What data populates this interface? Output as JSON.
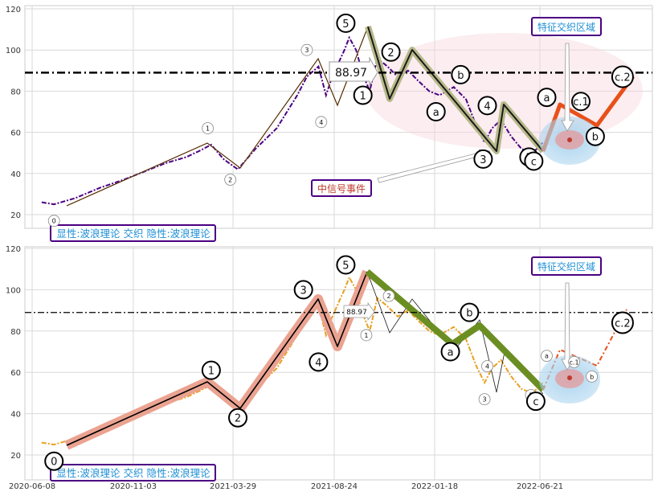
{
  "chart_data": [
    {
      "type": "line",
      "panel": "top",
      "xlabel": "",
      "ylabel": "",
      "x_ticks": [
        "2020-06-08",
        "2020-11-03",
        "2021-03-29",
        "2021-08-24",
        "2022-01-18",
        "2022-06-21"
      ],
      "y_ticks": [
        "20",
        "40",
        "60",
        "80",
        "100",
        "120"
      ],
      "ylim": [
        8,
        122
      ],
      "grid": true,
      "price_color": "#4b0082",
      "ref_line": {
        "value": 88.97,
        "label": "88.97",
        "style": "dash-dot",
        "color": "#000000"
      },
      "series": [
        {
          "name": "",
          "x": [
            "2020-06-22",
            "2020-07-10",
            "2020-08-10",
            "2020-09-15",
            "2020-10-20",
            "2020-11-20",
            "2020-12-20",
            "2021-01-20",
            "2021-02-08",
            "2021-02-25",
            "2021-03-15",
            "2021-04-05",
            "2021-05-01",
            "2021-06-01",
            "2021-07-01",
            "2021-07-15",
            "2021-08-01",
            "2021-08-12",
            "2021-08-20",
            "2021-09-01",
            "2021-09-08",
            "2021-09-15",
            "2021-09-25",
            "2021-10-05",
            "2021-10-15",
            "2021-10-26",
            "2021-11-10",
            "2021-11-25",
            "2021-12-10",
            "2021-12-25",
            "2022-01-10",
            "2022-01-25",
            "2022-02-15",
            "2022-03-05",
            "2022-03-20",
            "2022-04-01",
            "2022-04-12",
            "2022-04-25",
            "2022-05-10",
            "2022-05-25",
            "2022-06-10",
            "2022-06-20",
            "2022-06-25"
          ],
          "values": [
            26,
            25,
            28,
            33,
            37,
            41,
            45,
            48,
            51,
            54,
            47,
            42,
            52,
            62,
            78,
            87,
            92,
            78,
            86,
            95,
            100,
            106,
            100,
            88,
            80,
            96,
            92,
            87,
            90,
            85,
            80,
            78,
            82,
            76,
            63,
            55,
            62,
            66,
            58,
            52,
            50,
            53,
            55
          ]
        }
      ],
      "wave_markers": [
        {
          "label": "0",
          "x": "2020-07-10",
          "y": 17
        },
        {
          "label": "1",
          "x": "2021-02-20",
          "y": 62
        },
        {
          "label": "2",
          "x": "2021-03-25",
          "y": 37
        },
        {
          "label": "3",
          "x": "2021-07-15",
          "y": 100
        },
        {
          "label": "4",
          "x": "2021-08-05",
          "y": 65
        },
        {
          "label": "5",
          "x": "2021-09-10",
          "y": 113
        },
        {
          "label": "1",
          "x": "2021-10-05",
          "y": 78
        },
        {
          "label": "2",
          "x": "2021-11-15",
          "y": 99
        },
        {
          "label": "a",
          "x": "2022-01-20",
          "y": 70
        },
        {
          "label": "b",
          "x": "2022-02-25",
          "y": 88
        },
        {
          "label": "3",
          "x": "2022-03-30",
          "y": 47
        },
        {
          "label": "4",
          "x": "2022-04-05",
          "y": 73
        },
        {
          "label": "5",
          "x": "2022-06-05",
          "y": 48
        },
        {
          "label": "c",
          "x": "2022-06-12",
          "y": 46
        },
        {
          "label": "a",
          "x": "2022-07-01",
          "y": 77
        },
        {
          "label": "c.1",
          "x": "2022-08-20",
          "y": 75
        },
        {
          "label": "b",
          "x": "2022-09-10",
          "y": 58
        },
        {
          "label": "c.2",
          "x": "2022-10-20",
          "y": 87
        }
      ],
      "legend_box": "显性:波浪理论 交织 隐性:波浪理论",
      "annotations": {
        "zone_label": "特征交织区域",
        "event_label": "中信号事件",
        "value_label": "88.97"
      }
    },
    {
      "type": "line",
      "panel": "bottom",
      "xlabel": "",
      "ylabel": "",
      "x_ticks": [
        "2020-06-08",
        "2020-11-03",
        "2021-03-29",
        "2021-08-24",
        "2022-01-18",
        "2022-06-21"
      ],
      "y_ticks": [
        "20",
        "40",
        "60",
        "80",
        "100",
        "120"
      ],
      "ylim": [
        8,
        122
      ],
      "grid": true,
      "price_color": "#e8a020",
      "ref_line": {
        "value": 88.97,
        "label": "88.97",
        "style": "dash-dot",
        "color": "#000000"
      },
      "series": [
        {
          "name": "",
          "x": [
            "2020-06-22",
            "2020-07-10",
            "2020-08-10",
            "2020-09-15",
            "2020-10-20",
            "2020-11-20",
            "2020-12-20",
            "2021-01-20",
            "2021-02-08",
            "2021-02-25",
            "2021-03-15",
            "2021-04-05",
            "2021-05-01",
            "2021-06-01",
            "2021-07-01",
            "2021-07-15",
            "2021-08-01",
            "2021-08-12",
            "2021-08-20",
            "2021-09-01",
            "2021-09-08",
            "2021-09-15",
            "2021-09-25",
            "2021-10-05",
            "2021-10-15",
            "2021-10-26",
            "2021-11-10",
            "2021-11-25",
            "2021-12-10",
            "2021-12-25",
            "2022-01-10",
            "2022-01-25",
            "2022-02-15",
            "2022-03-05",
            "2022-03-20",
            "2022-04-01",
            "2022-04-12",
            "2022-04-25",
            "2022-05-10",
            "2022-05-25",
            "2022-06-10",
            "2022-06-20",
            "2022-06-25"
          ],
          "values": [
            26,
            25,
            28,
            33,
            37,
            41,
            45,
            48,
            51,
            54,
            47,
            42,
            52,
            62,
            78,
            87,
            92,
            78,
            86,
            95,
            100,
            106,
            100,
            88,
            80,
            96,
            92,
            87,
            90,
            85,
            80,
            78,
            82,
            76,
            63,
            55,
            62,
            66,
            58,
            52,
            50,
            53,
            55
          ]
        }
      ],
      "wave_markers": [
        {
          "label": "0",
          "x": "2020-07-10",
          "y": 17
        },
        {
          "label": "1",
          "x": "2021-02-25",
          "y": 61
        },
        {
          "label": "2",
          "x": "2021-04-05",
          "y": 38
        },
        {
          "label": "3",
          "x": "2021-07-10",
          "y": 100
        },
        {
          "label": "4",
          "x": "2021-08-01",
          "y": 65
        },
        {
          "label": "5",
          "x": "2021-09-10",
          "y": 112
        },
        {
          "label": "1",
          "x": "2021-10-10",
          "y": 78
        },
        {
          "label": "2",
          "x": "2021-11-12",
          "y": 97
        },
        {
          "label": "a",
          "x": "2022-02-10",
          "y": 70
        },
        {
          "label": "b",
          "x": "2022-03-10",
          "y": 89
        },
        {
          "label": "3",
          "x": "2022-04-01",
          "y": 47
        },
        {
          "label": "4",
          "x": "2022-04-05",
          "y": 63
        },
        {
          "label": "5",
          "x": "2022-06-08",
          "y": 49
        },
        {
          "label": "c",
          "x": "2022-06-15",
          "y": 46
        },
        {
          "label": "a",
          "x": "2022-07-01",
          "y": 68
        },
        {
          "label": "c.1",
          "x": "2022-08-10",
          "y": 65
        },
        {
          "label": "b",
          "x": "2022-09-05",
          "y": 58
        },
        {
          "label": "c.2",
          "x": "2022-10-20",
          "y": 84
        }
      ],
      "legend_box": "显性:波浪理论 交织 隐性:波浪理论",
      "annotations": {
        "zone_label": "特征交织区域",
        "value_label": "88.97"
      }
    }
  ]
}
